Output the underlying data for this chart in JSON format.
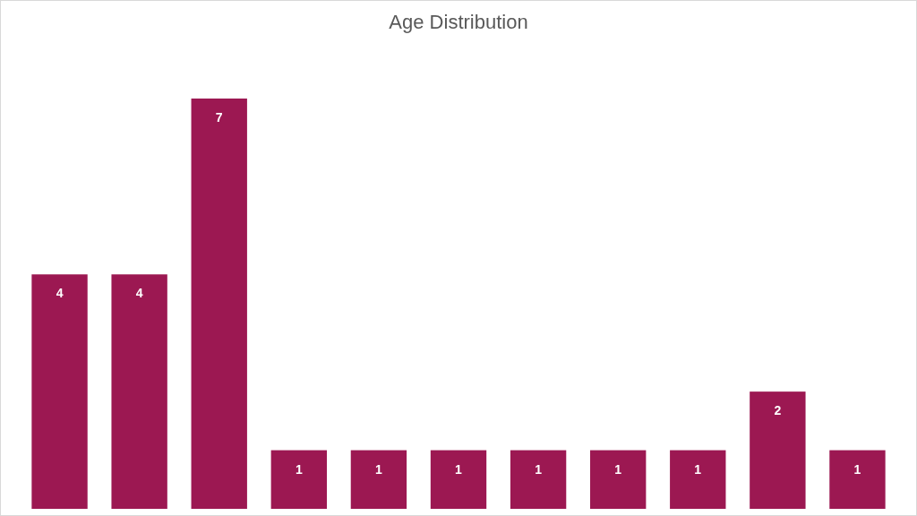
{
  "chart_data": {
    "type": "bar",
    "title": "Age Distribution",
    "categories": [
      null,
      null,
      null,
      null,
      null,
      null,
      null,
      null,
      null,
      null,
      null
    ],
    "values": [
      4,
      4,
      7,
      1,
      1,
      1,
      1,
      1,
      1,
      2,
      1
    ],
    "color": "#9c1852",
    "data_labels": true
  }
}
